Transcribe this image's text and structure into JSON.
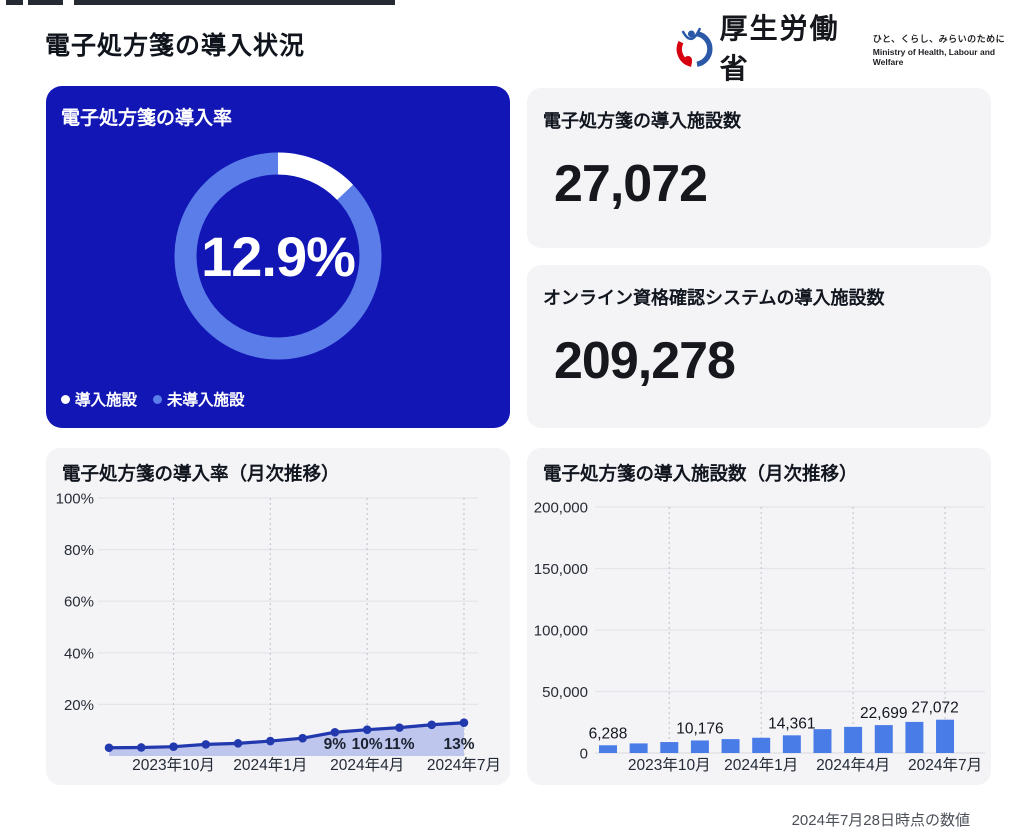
{
  "page": {
    "title": "電子処方箋の導入状況",
    "footnote": "2024年7月28日時点の数値"
  },
  "logo": {
    "org_name": "厚生労働省",
    "tagline_jp": "ひと、くらし、みらいのために",
    "tagline_en": "Ministry of Health, Labour and Welfare"
  },
  "stat_cards": [
    {
      "title": "電子処方箋の導入施設数",
      "value": "27,072"
    },
    {
      "title": "オンライン資格確認システムの導入施設数",
      "value": "209,278"
    }
  ],
  "colors": {
    "deep_blue_card": "#1216b4",
    "ring_light_blue": "#5b7de9",
    "bar_blue": "#4a7ce8",
    "line_blue": "#2239ae",
    "area_fill": "#b9c1ec",
    "grid_solid": "#e4e5ea",
    "grid_dotted": "#c6c8d2"
  },
  "chart_data": [
    {
      "type": "donut",
      "title": "電子処方箋の導入率",
      "center_label": "12.9%",
      "slices": [
        {
          "name": "導入施設",
          "value": 12.9,
          "color": "#ffffff"
        },
        {
          "name": "未導入施設",
          "value": 87.1,
          "color": "#5b7de9"
        }
      ],
      "legend_position": "bottom-left"
    },
    {
      "type": "line",
      "title": "電子処方箋の導入率（月次推移）",
      "n_points": 12,
      "values_percent": [
        3.2,
        3.3,
        3.6,
        4.5,
        4.9,
        5.8,
        6.9,
        9.2,
        10.2,
        11.0,
        12.1,
        12.9
      ],
      "point_labels": [
        {
          "index": 7,
          "text": "9%"
        },
        {
          "index": 8,
          "text": "10%"
        },
        {
          "index": 9,
          "text": "11%"
        },
        {
          "index": 11,
          "text": "13%"
        }
      ],
      "x_ticks": [
        {
          "index": 2,
          "label": "2023年10月"
        },
        {
          "index": 5,
          "label": "2024年1月"
        },
        {
          "index": 8,
          "label": "2024年4月"
        },
        {
          "index": 11,
          "label": "2024年7月"
        }
      ],
      "ylim": [
        0,
        100
      ],
      "y_tick_labels": [
        "100%",
        "80%",
        "60%",
        "40%",
        "20%"
      ],
      "y_tick_values": [
        100,
        80,
        60,
        40,
        20
      ],
      "grid": {
        "horizontal": "solid",
        "vertical": "dotted"
      },
      "line_color": "#2239ae",
      "area_color": "#b9c1ec",
      "legend_position": "none"
    },
    {
      "type": "bar",
      "title": "電子処方箋の導入施設数（月次推移）",
      "n_points": 12,
      "values": [
        6288,
        7800,
        8900,
        10176,
        11300,
        12400,
        14361,
        19400,
        21250,
        22699,
        25280,
        27072
      ],
      "bar_labels": [
        {
          "index": 0,
          "text": "6,288"
        },
        {
          "index": 3,
          "text": "10,176"
        },
        {
          "index": 6,
          "text": "14,361"
        },
        {
          "index": 9,
          "text": "22,699"
        },
        {
          "index": 11,
          "text": "27,072"
        }
      ],
      "x_ticks": [
        {
          "index": 2,
          "label": "2023年10月"
        },
        {
          "index": 5,
          "label": "2024年1月"
        },
        {
          "index": 8,
          "label": "2024年4月"
        },
        {
          "index": 11,
          "label": "2024年7月"
        }
      ],
      "ylim": [
        0,
        200000
      ],
      "y_tick_labels": [
        "200,000",
        "150,000",
        "100,000",
        "50,000",
        "0"
      ],
      "y_tick_values": [
        200000,
        150000,
        100000,
        50000,
        0
      ],
      "grid": {
        "horizontal": "solid",
        "vertical": "dotted"
      },
      "bar_color": "#4a7ce8",
      "legend_position": "none"
    }
  ]
}
